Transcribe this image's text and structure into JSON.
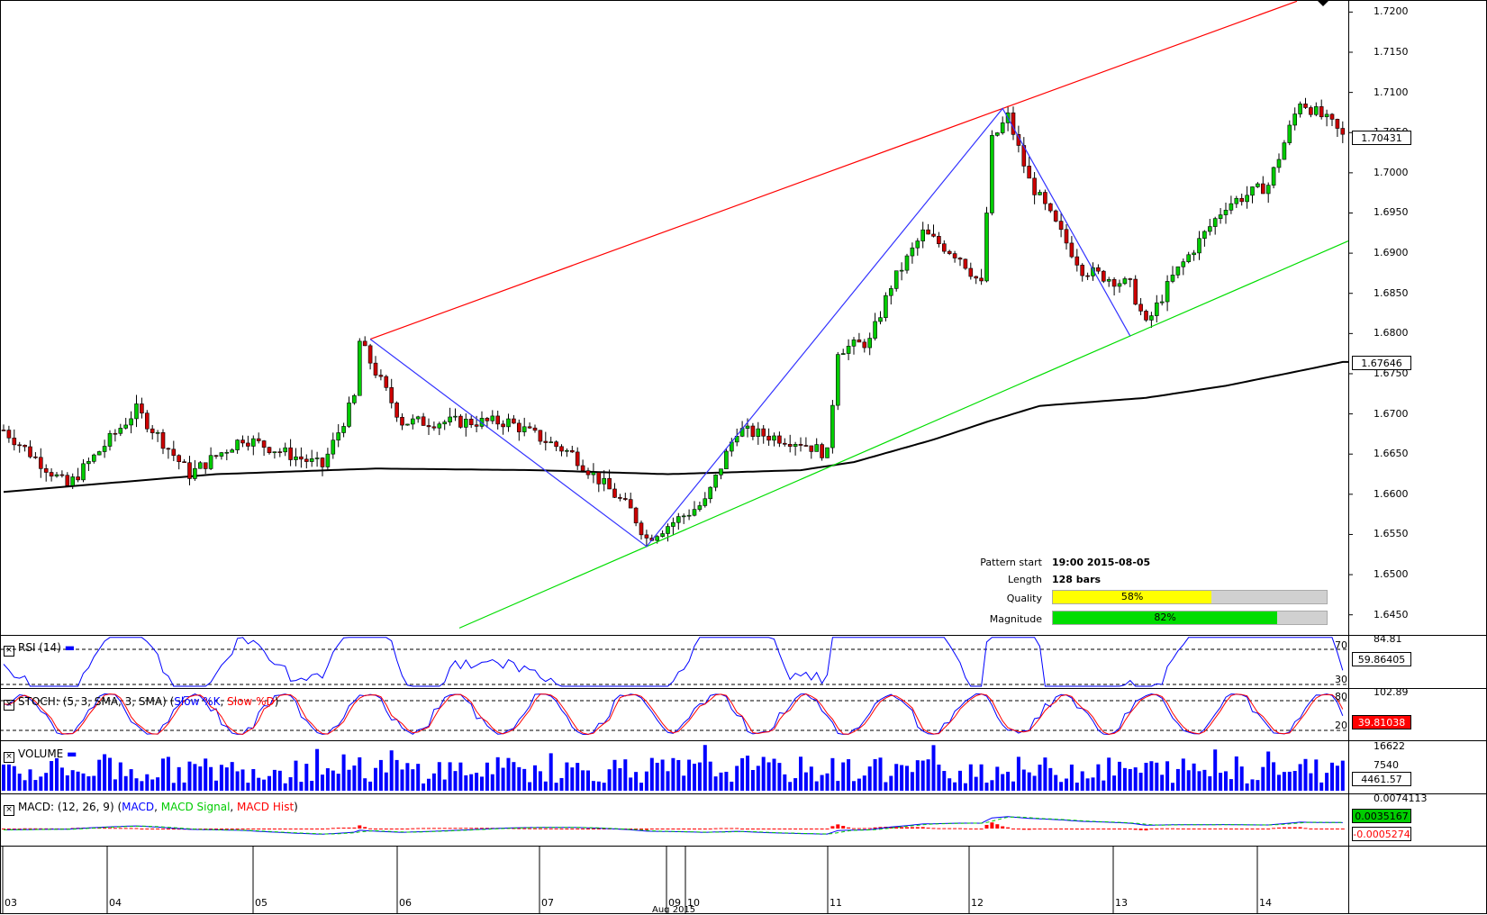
{
  "colors": {
    "background": "#ffffff",
    "candle_up": "#00cc00",
    "candle_down": "#cc0000",
    "ma_line": "#000000",
    "channel_upper": "#ff0000",
    "channel_lower": "#00dd00",
    "zigzag": "#3333ff",
    "rsi": "#0000ff",
    "stoch_k": "#0000ff",
    "stoch_d": "#ff0000",
    "volume": "#0000ff",
    "macd": "#0000ff",
    "macd_signal": "#00cc00",
    "macd_hist": "#ff0000",
    "quality_bar": "#ffff00",
    "magnitude_bar": "#00dd00"
  },
  "pattern_info": {
    "start_label": "Pattern start",
    "start_value": "19:00 2015-08-05",
    "length_label": "Length",
    "length_value": "128 bars",
    "quality_label": "Quality",
    "quality_value": "58%",
    "quality_fraction": 0.58,
    "magnitude_label": "Magnitude",
    "magnitude_value": "82%",
    "magnitude_fraction": 0.82
  },
  "panes": {
    "rsi_title": "RSI (14)",
    "stoch_title": "STOCH: (5, 3, SMA, 3, SMA)",
    "stoch_k_label": "Slow %K",
    "stoch_d_label": "Slow %D",
    "volume_title": "VOLUME",
    "macd_title": "MACD: (12, 26, 9)",
    "macd_label": "MACD",
    "macd_signal_label": "MACD Signal",
    "macd_hist_label": "MACD Hist"
  },
  "price_axis": [
    "1.7200",
    "1.7150",
    "1.7100",
    "1.7050",
    "1.7000",
    "1.6950",
    "1.6900",
    "1.6850",
    "1.6800",
    "1.6750",
    "1.6700",
    "1.6650",
    "1.6600",
    "1.6550",
    "1.6500",
    "1.6450"
  ],
  "tags": {
    "last_price": "1.70431",
    "ma_value": "1.67646",
    "rsi_value": "59.86405",
    "stoch_value": "39.81038",
    "volume_value": "4461.57",
    "macd_value": "0.0035167",
    "macd_hist_value": "-0.0005274"
  },
  "rsi_axis": {
    "top": "84.81",
    "level_high": "70",
    "level_low": "30"
  },
  "stoch_axis": {
    "top": "102.89",
    "level_high": "80",
    "level_low": "20"
  },
  "volume_axis": {
    "top": "16622",
    "mid": "7540"
  },
  "macd_axis": {
    "top": "0.0074113"
  },
  "x_axis": {
    "labels": [
      "03",
      "04",
      "05",
      "06",
      "07",
      "09",
      "10",
      "11",
      "12",
      "13",
      "14"
    ],
    "month_label": "Aug 2015"
  },
  "chart_data": {
    "type": "candlestick",
    "symbol_period": "hourly",
    "y_range": [
      1.6425,
      1.7215
    ],
    "moving_average_last": 1.67646,
    "last_price": 1.70431,
    "channel": {
      "upper": {
        "from": [
          "2015-08-05 19:00",
          1.6793
        ],
        "to": [
          "2015-08-12 02:00",
          1.708
        ]
      },
      "lower": {
        "from": [
          "2015-08-07 20:00",
          1.6535
        ],
        "to": [
          "2015-08-13 00:00",
          1.6797
        ]
      }
    },
    "zigzag_pivots": [
      [
        "2015-08-05 19:00",
        1.6793
      ],
      [
        "2015-08-07 20:00",
        1.6535
      ],
      [
        "2015-08-12 02:00",
        1.708
      ],
      [
        "2015-08-13 00:00",
        1.6797
      ]
    ]
  }
}
